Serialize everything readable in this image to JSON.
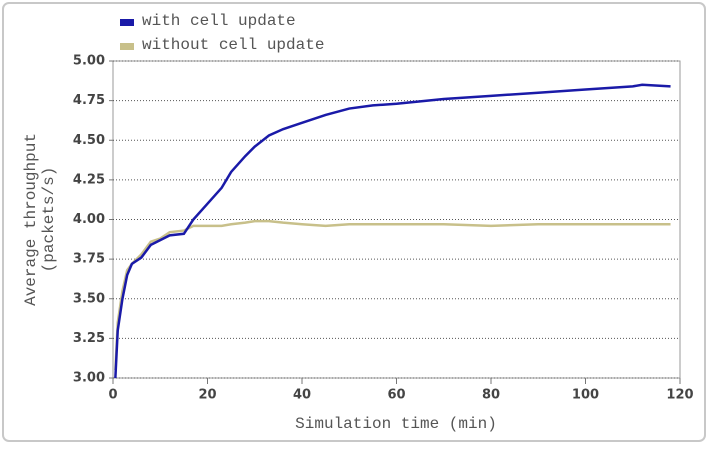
{
  "chart_data": {
    "type": "line",
    "xlabel": "Simulation time (min)",
    "ylabel": "Average throughput (packets/s)",
    "x": [
      0.5,
      1,
      2,
      3,
      4,
      6,
      8,
      10,
      12,
      15,
      17,
      20,
      23,
      25,
      28,
      30,
      33,
      36,
      40,
      45,
      50,
      55,
      60,
      70,
      80,
      90,
      100,
      110,
      112,
      118
    ],
    "series": [
      {
        "name": "with cell update",
        "color": "#1a1aa8",
        "values": [
          3.0,
          3.3,
          3.5,
          3.65,
          3.72,
          3.76,
          3.84,
          3.87,
          3.9,
          3.91,
          4.0,
          4.1,
          4.2,
          4.3,
          4.4,
          4.46,
          4.53,
          4.57,
          4.61,
          4.66,
          4.7,
          4.72,
          4.73,
          4.76,
          4.78,
          4.8,
          4.82,
          4.84,
          4.85,
          4.84
        ]
      },
      {
        "name": "without cell update",
        "color": "#c8c08a",
        "values": [
          3.05,
          3.35,
          3.55,
          3.68,
          3.72,
          3.78,
          3.86,
          3.88,
          3.92,
          3.93,
          3.96,
          3.96,
          3.96,
          3.97,
          3.98,
          3.99,
          3.99,
          3.98,
          3.97,
          3.96,
          3.97,
          3.97,
          3.97,
          3.97,
          3.96,
          3.97,
          3.97,
          3.97,
          3.97,
          3.97
        ]
      }
    ],
    "xlim": [
      0,
      120
    ],
    "xticks": [
      0,
      20,
      40,
      60,
      80,
      100,
      120
    ],
    "ylim": [
      3,
      5
    ],
    "yticks": [
      {
        "value": 3,
        "label": "3.00"
      },
      {
        "value": 3.25,
        "label": "3.25"
      },
      {
        "value": 3.5,
        "label": "3.50"
      },
      {
        "value": 3.75,
        "label": "3.75"
      },
      {
        "value": 4,
        "label": "4.00"
      },
      {
        "value": 4.25,
        "label": "4.25"
      },
      {
        "value": 4.5,
        "label": "4.50"
      },
      {
        "value": 4.75,
        "label": "4.75"
      },
      {
        "value": 5,
        "label": "5.00"
      }
    ],
    "grid": true,
    "legend": "top-left"
  }
}
